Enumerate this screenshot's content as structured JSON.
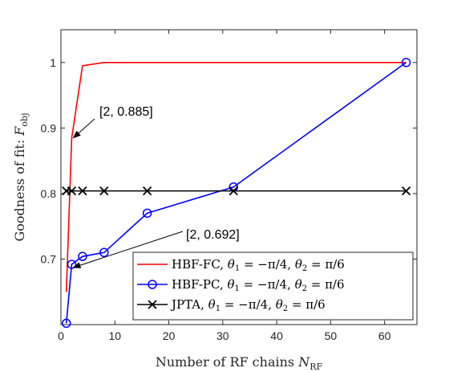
{
  "chart_data": {
    "type": "line",
    "xlabel": "Number of RF chains N_RF",
    "xlabel_main": "Number of RF chains ",
    "xlabel_sym": "N",
    "xlabel_sub": "RF",
    "ylabel": "Goodness of fit: F_obj",
    "ylabel_main": "Goodness of fit: ",
    "ylabel_sym": "F",
    "ylabel_sub": "obj",
    "xlim": [
      0,
      66
    ],
    "ylim": [
      0.6,
      1.05
    ],
    "xticks": [
      0,
      10,
      20,
      30,
      40,
      50,
      60
    ],
    "yticks": [
      0.7,
      0.8,
      0.9,
      1.0
    ],
    "ytick_labels": [
      "0.7",
      "0.8",
      "0.9",
      "1"
    ],
    "grid": false,
    "legend_position": "bottom-right",
    "series": [
      {
        "name": "HBF-FC, θ1 = −π/4, θ2 = π/6",
        "legend_prefix": "HBF-FC, ",
        "color": "#ff0000",
        "marker": "none",
        "x": [
          1,
          2,
          4,
          8,
          16,
          32,
          64
        ],
        "y": [
          0.65,
          0.885,
          0.995,
          1.0,
          1.0,
          1.0,
          1.0
        ]
      },
      {
        "name": "HBF-PC, θ1 = −π/4, θ2 = π/6",
        "legend_prefix": "HBF-PC, ",
        "color": "#0000ff",
        "marker": "circle",
        "x": [
          1,
          2,
          4,
          8,
          16,
          32,
          64
        ],
        "y": [
          0.602,
          0.692,
          0.704,
          0.71,
          0.77,
          0.81,
          1.0
        ]
      },
      {
        "name": "JPTA, θ1 = −π/4, θ2 = π/6",
        "legend_prefix": "JPTA, ",
        "color": "#000000",
        "marker": "x",
        "x": [
          1,
          2,
          4,
          8,
          16,
          32,
          64
        ],
        "y": [
          0.804,
          0.804,
          0.804,
          0.804,
          0.804,
          0.804,
          0.804
        ]
      }
    ],
    "annotations": [
      {
        "text": "[2, 0.885]",
        "x": 2,
        "y": 0.885
      },
      {
        "text": "[2, 0.692]",
        "x": 2,
        "y": 0.692
      }
    ]
  }
}
